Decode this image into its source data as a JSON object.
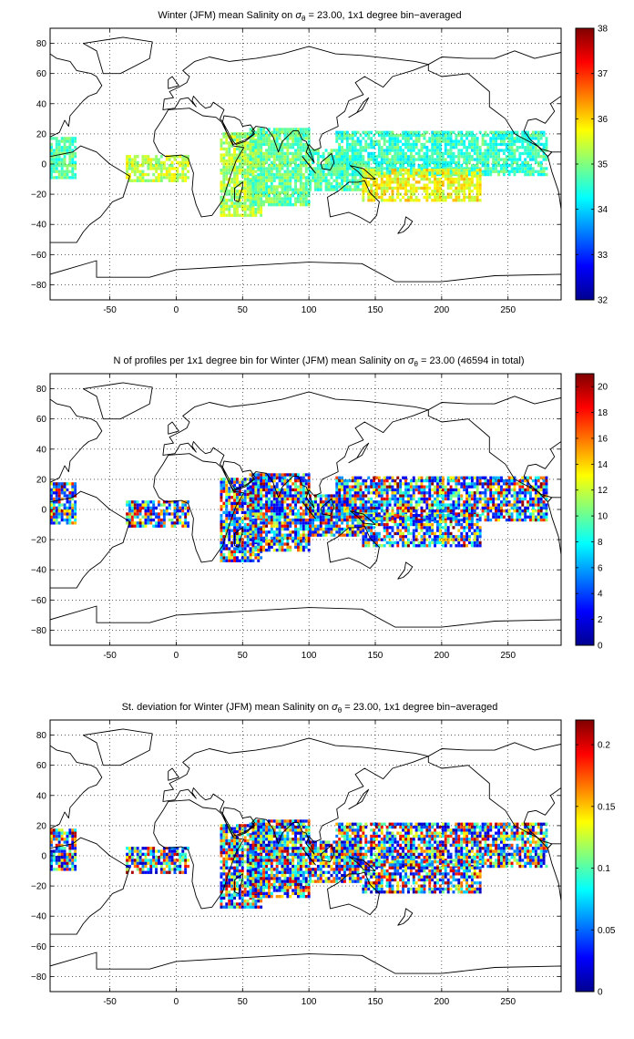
{
  "panels": [
    {
      "id": "mean-salinity",
      "title": "Winter (JFM) mean Salinity on σθ = 23.00, 1x1 degree bin−averaged",
      "title_parts": [
        "Winter (JFM) mean Salinity on ",
        "σ",
        "θ",
        " = 23.00, 1x1 degree bin−averaged"
      ],
      "colorbar_ticks": [
        "32",
        "33",
        "34",
        "35",
        "36",
        "37",
        "38"
      ],
      "colorbar_range": [
        32,
        38
      ]
    },
    {
      "id": "profile-count",
      "title": "N of profiles per 1x1 degree bin for Winter (JFM) mean Salinity on σθ = 23.00 (46594 in total)",
      "title_parts": [
        "N of profiles per 1x1 degree bin for Winter (JFM) mean Salinity on ",
        "σ",
        "θ",
        " = 23.00 (46594 in total)"
      ],
      "colorbar_ticks": [
        "0",
        "2",
        "4",
        "6",
        "8",
        "10",
        "12",
        "14",
        "16",
        "18",
        "20"
      ],
      "colorbar_range": [
        0,
        21
      ]
    },
    {
      "id": "salinity-std",
      "title": "St. deviation for Winter (JFM) mean Salinity on σθ = 23.00, 1x1 degree bin−averaged",
      "title_parts": [
        "St. deviation for Winter (JFM) mean Salinity on ",
        "σ",
        "θ",
        " = 23.00, 1x1 degree bin−averaged"
      ],
      "colorbar_ticks": [
        "0",
        "0.05",
        "0.1",
        "0.15",
        "0.2"
      ],
      "colorbar_range": [
        0,
        0.22
      ]
    }
  ],
  "map_axes": {
    "x_ticks": [
      "-50",
      "0",
      "50",
      "100",
      "150",
      "200",
      "250"
    ],
    "y_ticks": [
      "80",
      "60",
      "40",
      "20",
      "0",
      "−20",
      "−40",
      "−60",
      "−80"
    ],
    "x_range": [
      -95,
      290
    ],
    "y_range": [
      -90,
      90
    ],
    "grid": "dotted"
  },
  "colormap": "jet"
}
